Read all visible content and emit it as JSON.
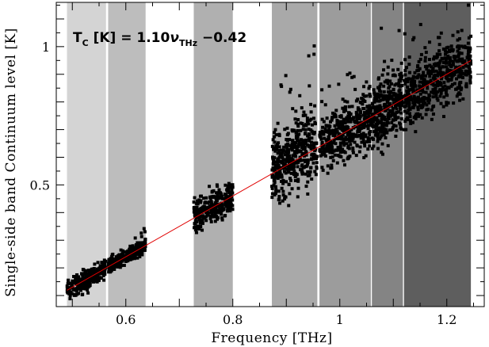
{
  "chart_data": {
    "type": "scatter",
    "xlabel": "Frequency [THz]",
    "ylabel": "Single-side band Continuum level [K]",
    "xlim": [
      0.47,
      1.27
    ],
    "ylim": [
      0.06,
      1.16
    ],
    "x_ticks": [
      0.6,
      0.8,
      1.0,
      1.2
    ],
    "x_tick_labels": [
      "0.6",
      "0.8",
      "1",
      "1.2"
    ],
    "y_ticks": [
      0.5,
      1.0
    ],
    "y_tick_labels": [
      "0.5",
      "1"
    ],
    "annotation": {
      "prefix": "T",
      "prefix_sub": "C",
      "middle": " [K] = 1.10",
      "nu": "ν",
      "nu_sub": "THz",
      "suffix": " −0.42"
    },
    "fit_line": {
      "slope": 1.1,
      "intercept": -0.42,
      "x_range": [
        0.49,
        1.245
      ],
      "color": "#e00000"
    },
    "bands": [
      {
        "x_range": [
          0.49,
          0.563
        ],
        "gray": "#d4d4d4"
      },
      {
        "x_range": [
          0.567,
          0.637
        ],
        "gray": "#bdbdbd"
      },
      {
        "x_range": [
          0.727,
          0.8
        ],
        "gray": "#b0b0b0"
      },
      {
        "x_range": [
          0.873,
          0.958
        ],
        "gray": "#a9a9a9"
      },
      {
        "x_range": [
          0.962,
          1.058
        ],
        "gray": "#9c9c9c"
      },
      {
        "x_range": [
          1.06,
          1.118
        ],
        "gray": "#848484"
      },
      {
        "x_range": [
          1.12,
          1.245
        ],
        "gray": "#5e5e5e"
      }
    ],
    "point_groups": [
      {
        "x_range": [
          0.49,
          0.563
        ],
        "center_at": "fit",
        "offset": 0.0,
        "spread": 0.018,
        "count": 260
      },
      {
        "x_range": [
          0.567,
          0.637
        ],
        "center_at": "fit",
        "offset": 0.0,
        "spread": 0.014,
        "count": 260
      },
      {
        "x_range": [
          0.727,
          0.8
        ],
        "center_at": "fit",
        "offset": 0.005,
        "spread": 0.03,
        "count": 280
      },
      {
        "x_range": [
          0.873,
          0.958
        ],
        "center_at": "fit",
        "offset": 0.02,
        "spread": 0.065,
        "count": 420
      },
      {
        "x_range": [
          0.962,
          1.058
        ],
        "center_at": "fit",
        "offset": 0.0,
        "spread": 0.05,
        "count": 420
      },
      {
        "x_range": [
          1.06,
          1.118
        ],
        "center_at": "fit",
        "offset": 0.0,
        "spread": 0.06,
        "count": 320
      },
      {
        "x_range": [
          1.12,
          1.245
        ],
        "center_at": "fit",
        "offset": 0.0,
        "spread": 0.055,
        "count": 520
      }
    ],
    "point_color": "#000000",
    "grid": false,
    "legend": "none"
  }
}
